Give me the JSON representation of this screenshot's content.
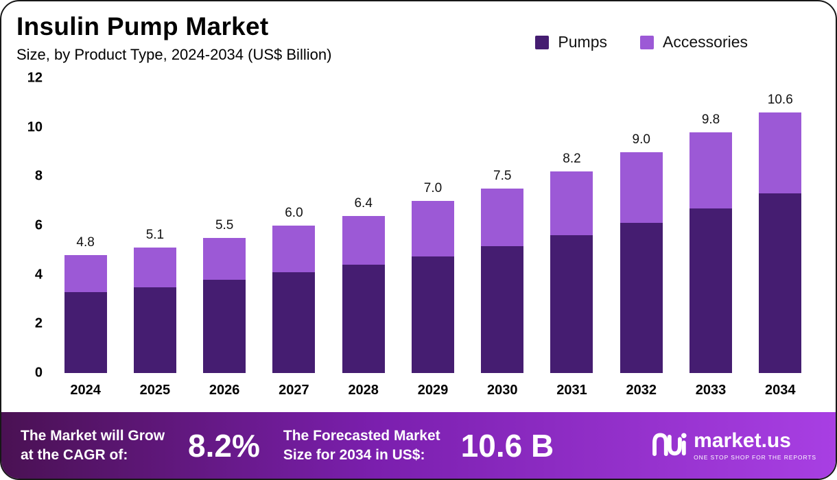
{
  "title": "Insulin Pump Market",
  "subtitle": "Size, by Product Type, 2024-2034 (US$ Billion)",
  "legend": [
    {
      "label": "Pumps",
      "color": "#451d71"
    },
    {
      "label": "Accessories",
      "color": "#9c59d6"
    }
  ],
  "chart_data": {
    "type": "bar",
    "stacked": true,
    "title": "Insulin Pump Market Size, by Product Type, 2024-2034 (US$ Billion)",
    "xlabel": "",
    "ylabel": "",
    "categories": [
      "2024",
      "2025",
      "2026",
      "2027",
      "2028",
      "2029",
      "2030",
      "2031",
      "2032",
      "2033",
      "2034"
    ],
    "series": [
      {
        "name": "Pumps",
        "color": "#451d71",
        "values": [
          3.3,
          3.5,
          3.8,
          4.1,
          4.4,
          4.75,
          5.15,
          5.6,
          6.1,
          6.7,
          7.3
        ]
      },
      {
        "name": "Accessories",
        "color": "#9c59d6",
        "values": [
          1.5,
          1.6,
          1.7,
          1.9,
          2.0,
          2.25,
          2.35,
          2.6,
          2.9,
          3.1,
          3.3
        ]
      }
    ],
    "totals": [
      4.8,
      5.1,
      5.5,
      6.0,
      6.4,
      7.0,
      7.5,
      8.2,
      9.0,
      9.8,
      10.6
    ],
    "totals_display": [
      "4.8",
      "5.1",
      "5.5",
      "6.0",
      "6.4",
      "7.0",
      "7.5",
      "8.2",
      "9.0",
      "9.8",
      "10.6"
    ],
    "ylim": [
      0,
      12
    ],
    "yticks": [
      0,
      2,
      4,
      6,
      8,
      10,
      12
    ],
    "grid": false,
    "legend_position": "top-right"
  },
  "footer": {
    "cagr_label_line1": "The Market will Grow",
    "cagr_label_line2": "at the CAGR of:",
    "cagr_value": "8.2%",
    "forecast_label_line1": "The Forecasted Market",
    "forecast_label_line2": "Size for 2034 in US$:",
    "forecast_value": "10.6 B",
    "brand": "market.us",
    "brand_tagline": "ONE STOP SHOP FOR THE REPORTS"
  },
  "colors": {
    "pumps": "#451d71",
    "accessories": "#9c59d6",
    "footer_gradient_start": "#4a1153",
    "footer_gradient_end": "#a83fe3"
  }
}
